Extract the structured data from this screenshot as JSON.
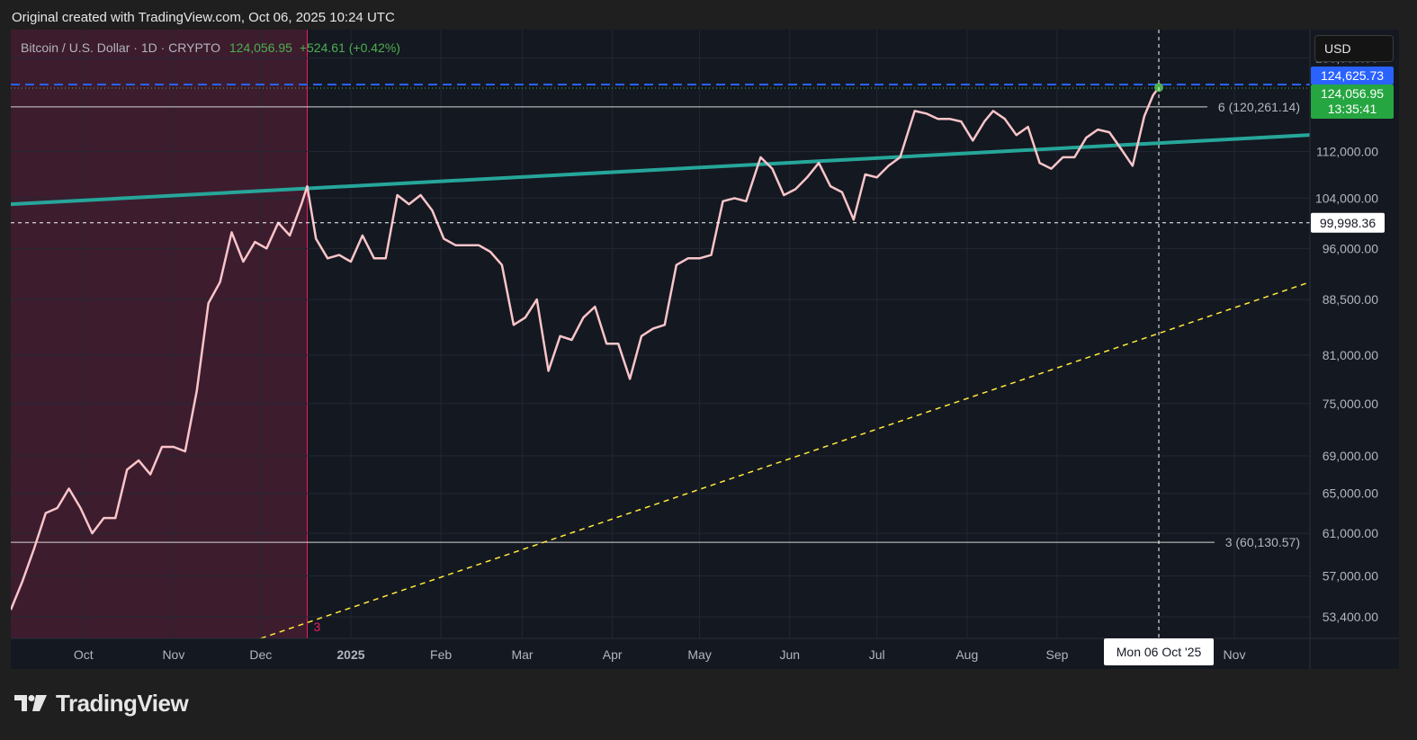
{
  "attribution": "Original created with TradingView.com, Oct 06, 2025 10:24 UTC",
  "legend": {
    "symbol": "Bitcoin / U.S. Dollar · 1D · CRYPTO",
    "price": "124,056.95",
    "change": "+524.61 (+0.42%)"
  },
  "currency_button": "USD",
  "brand": "TradingView",
  "colors": {
    "price_line": "#f9c5c9",
    "trend_line": "#26a69a",
    "support_line": "#ffeb3b",
    "high_line": "#2962ff",
    "shade": "#3d1c2e",
    "last_price_tag": "#26a641",
    "high_tag": "#2962ff"
  },
  "chart_data": {
    "type": "line",
    "series": [
      {
        "x": [
          "2024-09-06",
          "2024-09-10",
          "2024-09-14",
          "2024-09-18",
          "2024-09-22",
          "2024-09-26",
          "2024-09-30",
          "2024-10-04",
          "2024-10-08",
          "2024-10-12",
          "2024-10-16",
          "2024-10-20",
          "2024-10-24",
          "2024-10-28",
          "2024-11-01",
          "2024-11-05",
          "2024-11-09",
          "2024-11-13",
          "2024-11-17",
          "2024-11-21",
          "2024-11-25",
          "2024-11-29",
          "2024-12-03",
          "2024-12-07",
          "2024-12-11",
          "2024-12-15",
          "2024-12-17",
          "2024-12-20",
          "2024-12-24",
          "2024-12-28",
          "2025-01-01",
          "2025-01-05",
          "2025-01-09",
          "2025-01-13",
          "2025-01-17",
          "2025-01-21",
          "2025-01-25",
          "2025-01-29",
          "2025-02-02",
          "2025-02-06",
          "2025-02-10",
          "2025-02-14",
          "2025-02-18",
          "2025-02-22",
          "2025-02-26",
          "2025-03-02",
          "2025-03-06",
          "2025-03-10",
          "2025-03-14",
          "2025-03-18",
          "2025-03-22",
          "2025-03-26",
          "2025-03-30",
          "2025-04-03",
          "2025-04-07",
          "2025-04-11",
          "2025-04-15",
          "2025-04-19",
          "2025-04-23",
          "2025-04-27",
          "2025-05-01",
          "2025-05-05",
          "2025-05-09",
          "2025-05-13",
          "2025-05-17",
          "2025-05-22",
          "2025-05-26",
          "2025-05-30",
          "2025-06-03",
          "2025-06-07",
          "2025-06-11",
          "2025-06-15",
          "2025-06-19",
          "2025-06-23",
          "2025-06-27",
          "2025-07-01",
          "2025-07-05",
          "2025-07-09",
          "2025-07-14",
          "2025-07-18",
          "2025-07-22",
          "2025-07-26",
          "2025-07-30",
          "2025-08-03",
          "2025-08-07",
          "2025-08-10",
          "2025-08-14",
          "2025-08-18",
          "2025-08-22",
          "2025-08-26",
          "2025-08-30",
          "2025-09-03",
          "2025-09-07",
          "2025-09-11",
          "2025-09-15",
          "2025-09-19",
          "2025-09-23",
          "2025-09-27",
          "2025-10-01",
          "2025-10-04",
          "2025-10-06"
        ],
        "values": [
          54000,
          56500,
          59500,
          63000,
          63500,
          65500,
          63500,
          61000,
          62500,
          62500,
          67500,
          68500,
          67000,
          70000,
          70000,
          69500,
          76500,
          88000,
          91000,
          98500,
          94000,
          97000,
          96000,
          100000,
          98000,
          103000,
          106000,
          97500,
          94500,
          95000,
          94000,
          98000,
          94500,
          94500,
          104500,
          103000,
          104500,
          102000,
          97500,
          96500,
          96500,
          96500,
          95500,
          93500,
          85000,
          86000,
          88500,
          79000,
          83500,
          83000,
          86000,
          87500,
          82500,
          82500,
          78000,
          83500,
          84500,
          85000,
          93500,
          94500,
          94500,
          95000,
          103500,
          104000,
          103500,
          111000,
          109000,
          104500,
          105500,
          107500,
          110000,
          106000,
          105000,
          100500,
          108000,
          107500,
          109500,
          111000,
          119500,
          119000,
          118000,
          118000,
          117500,
          114000,
          117500,
          119500,
          118000,
          115000,
          116500,
          110000,
          109000,
          111000,
          111000,
          114500,
          116000,
          115500,
          112500,
          109500,
          118500,
          122500,
          124056.95
        ]
      }
    ],
    "y_ticks": [
      "130,000.00",
      "112,000.00",
      "104,000.00",
      "96,000.00",
      "88,500.00",
      "81,000.00",
      "75,000.00",
      "69,000.00",
      "65,000.00",
      "61,000.00",
      "57,000.00",
      "53,400.00"
    ],
    "y_tick_values": [
      130000,
      112000,
      104000,
      96000,
      88500,
      81000,
      75000,
      69000,
      65000,
      61000,
      57000,
      53400
    ],
    "x_ticks": [
      "Oct",
      "Nov",
      "Dec",
      "2025",
      "Feb",
      "Mar",
      "Apr",
      "May",
      "Jun",
      "Jul",
      "Aug",
      "Sep",
      "Nov"
    ],
    "x_tick_dates": [
      "2024-10-01",
      "2024-11-01",
      "2024-12-01",
      "2025-01-01",
      "2025-02-01",
      "2025-03-01",
      "2025-04-01",
      "2025-05-01",
      "2025-06-01",
      "2025-07-01",
      "2025-08-01",
      "2025-09-01",
      "2025-11-01"
    ],
    "x_range": [
      "2024-09-06",
      "2025-11-27"
    ],
    "y_range": [
      51600,
      136000
    ],
    "y_scale": "log",
    "grid": true,
    "annotations": {
      "level_6": {
        "label": "6 (120,261.14)",
        "value": 120261.14
      },
      "level_3": {
        "label": "3 (60,130.57)",
        "value": 60130.57
      },
      "high_level": {
        "label": "124,625.73",
        "value": 124625.73
      },
      "last_price": {
        "label": "124,056.95",
        "value": 124056.95
      },
      "countdown": "13:35:41",
      "crosshair_price": {
        "label": "99,998.36",
        "value": 99998.36
      },
      "crosshair_date": {
        "label": "Mon 06 Oct '25",
        "date": "2025-10-06"
      },
      "shaded_region": {
        "from": "2024-09-06",
        "to": "2024-12-17"
      },
      "marker_label": "3",
      "trend_line": {
        "from": [
          "2024-09-06",
          103000
        ],
        "to": [
          "2025-11-27",
          115000
        ]
      },
      "support_line": {
        "from": [
          "2024-12-01",
          51600
        ],
        "to": [
          "2025-11-27",
          91000
        ]
      }
    }
  }
}
